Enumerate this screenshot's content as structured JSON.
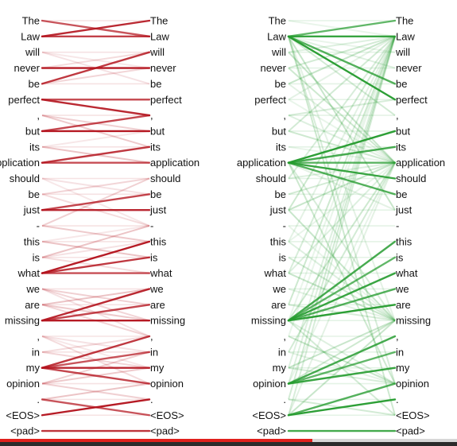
{
  "tokens": [
    "The",
    "Law",
    "will",
    "never",
    "be",
    "perfect",
    ",",
    "but",
    "its",
    "application",
    "should",
    "be",
    "just",
    "-",
    "this",
    "is",
    "what",
    "we",
    "are",
    "missing",
    ",",
    "in",
    "my",
    "opinion",
    ".",
    "<EOS>",
    "<pad>"
  ],
  "panels": [
    {
      "name": "red",
      "color": "#b3121c",
      "strong_links": [
        [
          0,
          1
        ],
        [
          1,
          0
        ],
        [
          1,
          1
        ],
        [
          3,
          3
        ],
        [
          4,
          2
        ],
        [
          5,
          5
        ],
        [
          5,
          6
        ],
        [
          7,
          6
        ],
        [
          7,
          7
        ],
        [
          9,
          8
        ],
        [
          9,
          9
        ],
        [
          12,
          12
        ],
        [
          12,
          11
        ],
        [
          16,
          14
        ],
        [
          16,
          15
        ],
        [
          16,
          16
        ],
        [
          19,
          17
        ],
        [
          19,
          18
        ],
        [
          19,
          19
        ],
        [
          22,
          20
        ],
        [
          22,
          21
        ],
        [
          22,
          22
        ],
        [
          22,
          23
        ],
        [
          25,
          24
        ],
        [
          26,
          26
        ],
        [
          24,
          25
        ]
      ],
      "faint_links": [
        [
          2,
          3
        ],
        [
          3,
          2
        ],
        [
          6,
          7
        ],
        [
          8,
          9
        ],
        [
          10,
          11
        ],
        [
          11,
          10
        ],
        [
          13,
          14
        ],
        [
          14,
          13
        ],
        [
          15,
          16
        ],
        [
          17,
          18
        ],
        [
          18,
          17
        ],
        [
          20,
          21
        ],
        [
          21,
          22
        ],
        [
          23,
          22
        ],
        [
          10,
          13
        ],
        [
          11,
          13
        ],
        [
          13,
          10
        ],
        [
          14,
          15
        ],
        [
          15,
          14
        ],
        [
          17,
          19
        ],
        [
          18,
          19
        ],
        [
          20,
          22
        ],
        [
          21,
          20
        ],
        [
          23,
          24
        ],
        [
          24,
          23
        ],
        [
          2,
          4
        ],
        [
          4,
          3
        ],
        [
          6,
          8
        ],
        [
          8,
          7
        ],
        [
          20,
          23
        ],
        [
          23,
          21
        ],
        [
          15,
          13
        ],
        [
          17,
          20
        ],
        [
          18,
          20
        ]
      ]
    },
    {
      "name": "green",
      "color": "#249b2e",
      "strong_links": [
        [
          1,
          0
        ],
        [
          1,
          1
        ],
        [
          1,
          4
        ],
        [
          1,
          5
        ],
        [
          9,
          8
        ],
        [
          9,
          9
        ],
        [
          9,
          10
        ],
        [
          9,
          11
        ],
        [
          9,
          7
        ],
        [
          19,
          14
        ],
        [
          19,
          15
        ],
        [
          19,
          16
        ],
        [
          19,
          17
        ],
        [
          19,
          18
        ],
        [
          23,
          20
        ],
        [
          23,
          21
        ],
        [
          23,
          22
        ],
        [
          25,
          23
        ],
        [
          25,
          24
        ],
        [
          26,
          26
        ]
      ],
      "faint_links": [
        [
          1,
          2
        ],
        [
          1,
          3
        ],
        [
          1,
          6
        ],
        [
          1,
          12
        ],
        [
          1,
          19
        ],
        [
          1,
          23
        ],
        [
          1,
          25
        ],
        [
          0,
          1
        ],
        [
          2,
          1
        ],
        [
          3,
          1
        ],
        [
          4,
          1
        ],
        [
          5,
          1
        ],
        [
          6,
          5
        ],
        [
          7,
          9
        ],
        [
          8,
          9
        ],
        [
          10,
          9
        ],
        [
          11,
          9
        ],
        [
          12,
          9
        ],
        [
          9,
          12
        ],
        [
          9,
          19
        ],
        [
          9,
          23
        ],
        [
          13,
          19
        ],
        [
          14,
          19
        ],
        [
          15,
          19
        ],
        [
          16,
          19
        ],
        [
          17,
          19
        ],
        [
          18,
          19
        ],
        [
          19,
          9
        ],
        [
          19,
          1
        ],
        [
          19,
          23
        ],
        [
          19,
          25
        ],
        [
          20,
          23
        ],
        [
          21,
          23
        ],
        [
          22,
          23
        ],
        [
          23,
          19
        ],
        [
          23,
          9
        ],
        [
          23,
          1
        ],
        [
          24,
          25
        ],
        [
          25,
          19
        ],
        [
          25,
          9
        ],
        [
          25,
          1
        ],
        [
          3,
          9
        ],
        [
          5,
          9
        ],
        [
          6,
          9
        ],
        [
          7,
          1
        ],
        [
          12,
          19
        ],
        [
          14,
          1
        ],
        [
          16,
          1
        ],
        [
          18,
          1
        ],
        [
          20,
          1
        ],
        [
          22,
          1
        ],
        [
          24,
          1
        ],
        [
          2,
          9
        ],
        [
          4,
          9
        ],
        [
          10,
          1
        ],
        [
          12,
          1
        ],
        [
          14,
          9
        ],
        [
          16,
          9
        ],
        [
          21,
          9
        ],
        [
          22,
          19
        ]
      ]
    }
  ],
  "progress": {
    "fraction": 0.684
  }
}
